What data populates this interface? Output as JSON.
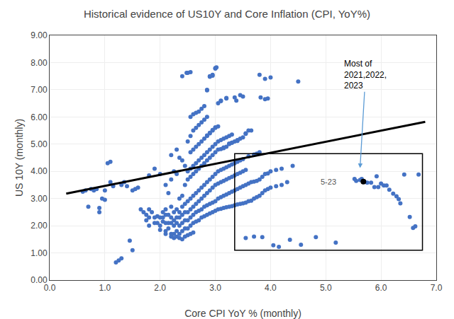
{
  "chart_data": {
    "type": "scatter",
    "title": "Historical evidence of US10Y and Core Inflation (CPI, YoY%)",
    "xlabel": "Core CPI YoY % (monthly)",
    "ylabel": "US 10Y (monthly)",
    "xlim": [
      0.0,
      7.0
    ],
    "ylim": [
      0.0,
      9.0
    ],
    "xticks": [
      {
        "value": 0.0,
        "label": "0.0"
      },
      {
        "value": 1.0,
        "label": "1.0"
      },
      {
        "value": 2.0,
        "label": "2.0"
      },
      {
        "value": 3.0,
        "label": "3.0"
      },
      {
        "value": 4.0,
        "label": "4.0"
      },
      {
        "value": 5.0,
        "label": "5.0"
      },
      {
        "value": 6.0,
        "label": "6.0"
      },
      {
        "value": 7.0,
        "label": "7.0"
      }
    ],
    "yticks": [
      {
        "value": 0.0,
        "label": "0.00"
      },
      {
        "value": 1.0,
        "label": "1.00"
      },
      {
        "value": 2.0,
        "label": "2.00"
      },
      {
        "value": 3.0,
        "label": "3.00"
      },
      {
        "value": 4.0,
        "label": "4.00"
      },
      {
        "value": 5.0,
        "label": "5.00"
      },
      {
        "value": 6.0,
        "label": "6.00"
      },
      {
        "value": 7.0,
        "label": "7.00"
      },
      {
        "value": 8.0,
        "label": "8.00"
      },
      {
        "value": 9.0,
        "label": "9.00"
      }
    ],
    "grid": true,
    "series": [
      {
        "type": "scatter",
        "color": "#4472C4",
        "x": [
          0.6,
          0.65,
          0.7,
          0.75,
          0.8,
          0.85,
          0.9,
          0.9,
          0.95,
          1.0,
          1.0,
          1.05,
          1.1,
          1.1,
          1.15,
          1.2,
          1.25,
          1.3,
          1.3,
          1.35,
          1.4,
          1.45,
          1.5,
          1.5,
          1.55,
          1.6,
          1.65,
          1.7,
          1.75,
          1.75,
          1.8,
          1.8,
          1.8,
          1.8,
          1.85,
          1.9,
          1.9,
          1.9,
          1.95,
          1.95,
          2.0,
          2.0,
          2.0,
          2.0,
          2.05,
          2.05,
          2.05,
          2.1,
          2.1,
          2.1,
          2.1,
          2.1,
          2.1,
          2.15,
          2.15,
          2.15,
          2.15,
          2.2,
          2.2,
          2.2,
          2.2,
          2.2,
          2.2,
          2.2,
          2.25,
          2.25,
          2.25,
          2.25,
          2.25,
          2.25,
          2.3,
          2.3,
          2.3,
          2.3,
          2.3,
          2.3,
          2.3,
          2.35,
          2.35,
          2.35,
          2.35,
          2.35,
          2.35,
          2.35,
          2.4,
          2.4,
          2.4,
          2.4,
          2.4,
          2.4,
          2.4,
          2.4,
          2.45,
          2.45,
          2.45,
          2.45,
          2.45,
          2.45,
          2.45,
          2.5,
          2.5,
          2.5,
          2.5,
          2.5,
          2.5,
          2.5,
          2.5,
          2.55,
          2.55,
          2.55,
          2.55,
          2.55,
          2.55,
          2.55,
          2.55,
          2.55,
          2.55,
          2.6,
          2.6,
          2.6,
          2.6,
          2.6,
          2.6,
          2.6,
          2.6,
          2.6,
          2.6,
          2.65,
          2.65,
          2.65,
          2.65,
          2.65,
          2.65,
          2.65,
          2.65,
          2.65,
          2.7,
          2.7,
          2.7,
          2.7,
          2.7,
          2.7,
          2.7,
          2.7,
          2.7,
          2.75,
          2.75,
          2.75,
          2.75,
          2.75,
          2.75,
          2.75,
          2.75,
          2.75,
          2.8,
          2.8,
          2.8,
          2.8,
          2.8,
          2.8,
          2.8,
          2.8,
          2.8,
          2.85,
          2.85,
          2.85,
          2.85,
          2.85,
          2.85,
          2.85,
          2.85,
          2.85,
          2.9,
          2.9,
          2.9,
          2.9,
          2.9,
          2.9,
          2.9,
          2.9,
          2.95,
          2.95,
          2.95,
          2.95,
          2.95,
          2.95,
          2.95,
          2.95,
          3.0,
          3.0,
          3.0,
          3.0,
          3.0,
          3.0,
          3.0,
          3.0,
          3.05,
          3.05,
          3.05,
          3.05,
          3.05,
          3.05,
          3.05,
          3.1,
          3.1,
          3.1,
          3.1,
          3.1,
          3.1,
          3.1,
          3.15,
          3.15,
          3.15,
          3.15,
          3.15,
          3.15,
          3.2,
          3.2,
          3.2,
          3.2,
          3.2,
          3.2,
          3.2,
          3.25,
          3.25,
          3.25,
          3.25,
          3.25,
          3.25,
          3.3,
          3.3,
          3.3,
          3.3,
          3.3,
          3.3,
          3.35,
          3.35,
          3.35,
          3.35,
          3.35,
          3.4,
          3.4,
          3.4,
          3.4,
          3.4,
          3.45,
          3.45,
          3.45,
          3.45,
          3.45,
          3.5,
          3.5,
          3.5,
          3.5,
          3.5,
          3.55,
          3.55,
          3.55,
          3.55,
          3.6,
          3.6,
          3.6,
          3.65,
          3.65,
          3.65,
          3.7,
          3.7,
          3.7,
          3.75,
          3.75,
          3.75,
          3.8,
          3.8,
          3.8,
          3.8,
          3.85,
          3.85,
          3.9,
          3.9,
          3.9,
          3.95,
          3.95,
          4.0,
          4.0,
          4.0,
          4.1,
          4.1,
          4.2,
          4.2,
          4.3,
          4.4,
          4.5,
          3.82,
          3.9,
          3.95,
          2.5,
          2.55,
          3.45,
          3.5,
          3.35,
          3.38,
          3.2,
          3.1,
          3.0,
          3.05,
          2.95,
          2.9,
          2.85,
          3.6,
          3.55,
          3.4,
          3.3,
          3.25,
          3.15,
          2.85,
          2.9,
          2.95,
          3.0,
          3.02,
          2.48
        ],
        "values": [
          3.25,
          3.3,
          2.7,
          3.35,
          3.3,
          3.35,
          2.5,
          2.65,
          3.0,
          3.3,
          2.95,
          4.3,
          4.35,
          3.6,
          3.45,
          0.65,
          0.72,
          0.8,
          3.5,
          3.6,
          3.45,
          1.45,
          1.1,
          3.3,
          3.35,
          3.4,
          2.6,
          2.5,
          2.4,
          2.2,
          2.3,
          2.0,
          2.6,
          3.85,
          2.5,
          2.3,
          4.1,
          2.1,
          2.1,
          2.35,
          2.0,
          2.3,
          3.9,
          1.85,
          2.15,
          2.3,
          2.5,
          1.7,
          1.8,
          2.1,
          2.4,
          2.6,
          3.5,
          1.9,
          2.1,
          2.4,
          3.2,
          1.6,
          1.7,
          2.1,
          2.3,
          2.7,
          3.7,
          4.6,
          1.55,
          1.7,
          2.0,
          2.2,
          2.5,
          4.0,
          1.6,
          1.8,
          2.1,
          2.3,
          2.6,
          3.9,
          4.8,
          1.55,
          1.7,
          2.0,
          2.3,
          2.5,
          3.0,
          4.5,
          1.5,
          1.8,
          2.1,
          2.4,
          2.7,
          3.1,
          4.4,
          7.5,
          1.6,
          1.9,
          2.2,
          2.5,
          2.8,
          3.5,
          4.2,
          1.65,
          1.9,
          2.2,
          2.5,
          2.9,
          3.7,
          4.0,
          5.1,
          1.7,
          2.0,
          2.3,
          2.6,
          3.0,
          3.8,
          4.1,
          4.7,
          5.3,
          6.0,
          1.75,
          2.1,
          2.4,
          2.7,
          3.1,
          3.9,
          4.2,
          4.8,
          5.5,
          6.1,
          2.15,
          2.5,
          2.8,
          3.2,
          4.0,
          4.3,
          4.9,
          5.6,
          6.15,
          2.2,
          2.55,
          2.9,
          3.3,
          4.1,
          4.4,
          5.0,
          5.7,
          6.2,
          2.3,
          2.6,
          3.0,
          3.4,
          4.2,
          4.5,
          5.1,
          5.8,
          6.3,
          2.35,
          2.7,
          3.1,
          3.5,
          4.3,
          4.6,
          5.2,
          5.9,
          6.4,
          2.4,
          2.75,
          3.2,
          3.6,
          4.4,
          4.7,
          5.3,
          6.0,
          7.0,
          2.45,
          2.8,
          3.3,
          3.7,
          4.5,
          4.8,
          5.4,
          7.5,
          2.5,
          2.85,
          3.4,
          3.8,
          4.6,
          4.9,
          5.5,
          7.55,
          2.55,
          2.9,
          3.5,
          3.9,
          4.7,
          5.0,
          5.6,
          7.8,
          2.6,
          3.0,
          3.55,
          4.0,
          4.8,
          5.1,
          6.5,
          2.62,
          3.05,
          3.6,
          4.05,
          4.82,
          5.15,
          6.6,
          2.65,
          3.1,
          3.65,
          4.1,
          4.85,
          5.2,
          2.68,
          3.15,
          3.7,
          4.15,
          4.9,
          5.25,
          6.7,
          2.7,
          3.2,
          3.75,
          4.2,
          5.0,
          5.3,
          2.72,
          3.25,
          3.8,
          4.25,
          5.05,
          5.35,
          2.75,
          3.3,
          3.85,
          4.3,
          5.1,
          2.78,
          3.35,
          3.9,
          4.35,
          5.15,
          2.8,
          3.4,
          3.95,
          4.4,
          5.2,
          2.82,
          3.45,
          4.0,
          4.45,
          5.25,
          2.85,
          3.5,
          4.05,
          5.4,
          2.9,
          3.55,
          4.55,
          2.92,
          3.6,
          5.5,
          3.0,
          3.62,
          4.62,
          3.05,
          3.65,
          4.65,
          3.1,
          3.7,
          4.7,
          7.55,
          3.2,
          3.8,
          3.3,
          3.9,
          7.4,
          3.35,
          3.92,
          3.4,
          4.0,
          7.45,
          3.45,
          4.05,
          3.5,
          4.1,
          3.6,
          4.2,
          7.3,
          6.72,
          6.65,
          6.68,
          7.62,
          7.65,
          6.8,
          6.75,
          6.72,
          6.6,
          6.68,
          6.58,
          5.62,
          5.65,
          5.52,
          5.42,
          5.32,
          5.5,
          5.38,
          5.12,
          5.05,
          5.02,
          4.88,
          6.98,
          7.48,
          7.52,
          7.78,
          7.82,
          7.62
        ]
      },
      {
        "type": "line",
        "color": "black",
        "x": [
          0.3,
          6.8
        ],
        "values": [
          3.18,
          5.82
        ]
      },
      {
        "type": "scatter",
        "color": "#4472C4",
        "x": [
          3.55,
          3.7,
          3.85,
          4.05,
          4.15,
          4.35,
          4.55,
          4.82,
          5.18,
          5.52,
          5.55,
          5.62,
          5.65,
          5.7,
          5.75,
          5.82,
          5.88,
          5.92,
          5.95,
          6.0,
          6.05,
          6.1,
          6.15,
          6.22,
          6.28,
          6.32,
          6.35,
          6.42,
          6.52,
          6.58,
          6.62,
          6.68
        ],
        "values": [
          1.55,
          1.6,
          1.58,
          1.28,
          1.22,
          1.48,
          1.3,
          1.58,
          1.38,
          3.72,
          3.65,
          3.68,
          3.72,
          3.62,
          3.58,
          3.58,
          3.42,
          3.82,
          3.42,
          3.55,
          3.48,
          3.48,
          3.32,
          3.18,
          3.08,
          2.98,
          2.82,
          3.88,
          2.32,
          1.92,
          1.98,
          3.88
        ]
      },
      {
        "type": "scatter",
        "color": "black",
        "x": [
          5.68
        ],
        "values": [
          3.62
        ]
      }
    ],
    "inset_box": {
      "x0": 3.35,
      "y0": 1.1,
      "x1": 6.75,
      "y1": 4.65,
      "color": "black"
    },
    "annotations": [
      {
        "text": "5-23",
        "x": 5.22,
        "y": 3.62,
        "color": "#555555"
      },
      {
        "text": "Most of\n2021,2022,\n2023",
        "x": 5.72,
        "y": 7.55,
        "arrow_to": [
          5.62,
          4.12
        ],
        "arrow_color": "#5B9BD5"
      }
    ]
  }
}
